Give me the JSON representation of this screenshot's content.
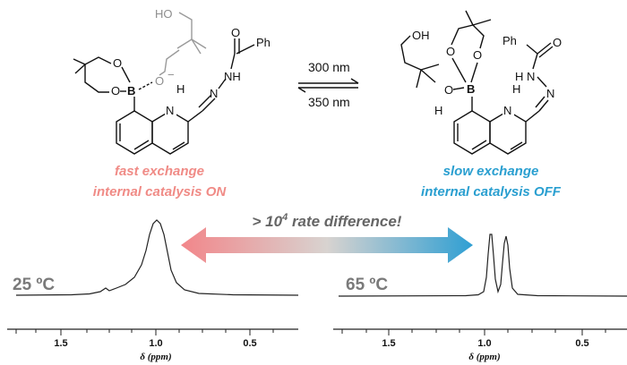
{
  "scheme": {
    "hv_forward": "300 nm",
    "hv_reverse": "350 nm",
    "left_state": {
      "line1": "fast exchange",
      "line2": "internal catalysis ON",
      "color": "#f08b86"
    },
    "right_state": {
      "line1": "slow exchange",
      "line2": "internal catalysis OFF",
      "color": "#2a9fd0"
    },
    "rate_label_prefix": "> 10",
    "rate_label_sup": "4",
    "rate_label_suffix": " rate difference!",
    "atoms": {
      "ho": "HO",
      "oh": "OH",
      "o": "O",
      "b": "B",
      "h": "H",
      "n": "N",
      "nh": "NH",
      "ph": "Ph",
      "minus": "−"
    }
  },
  "spectra": [
    {
      "temperature": "25 ºC",
      "ticks": [
        "1.5",
        "1.0",
        "0.5"
      ],
      "xlabel": "δ (ppm)",
      "description_peak": "broad"
    },
    {
      "temperature": "65 ºC",
      "ticks": [
        "1.5",
        "1.0",
        "0.5"
      ],
      "xlabel": "δ (ppm)",
      "description_peak": "sharp doublet"
    }
  ]
}
